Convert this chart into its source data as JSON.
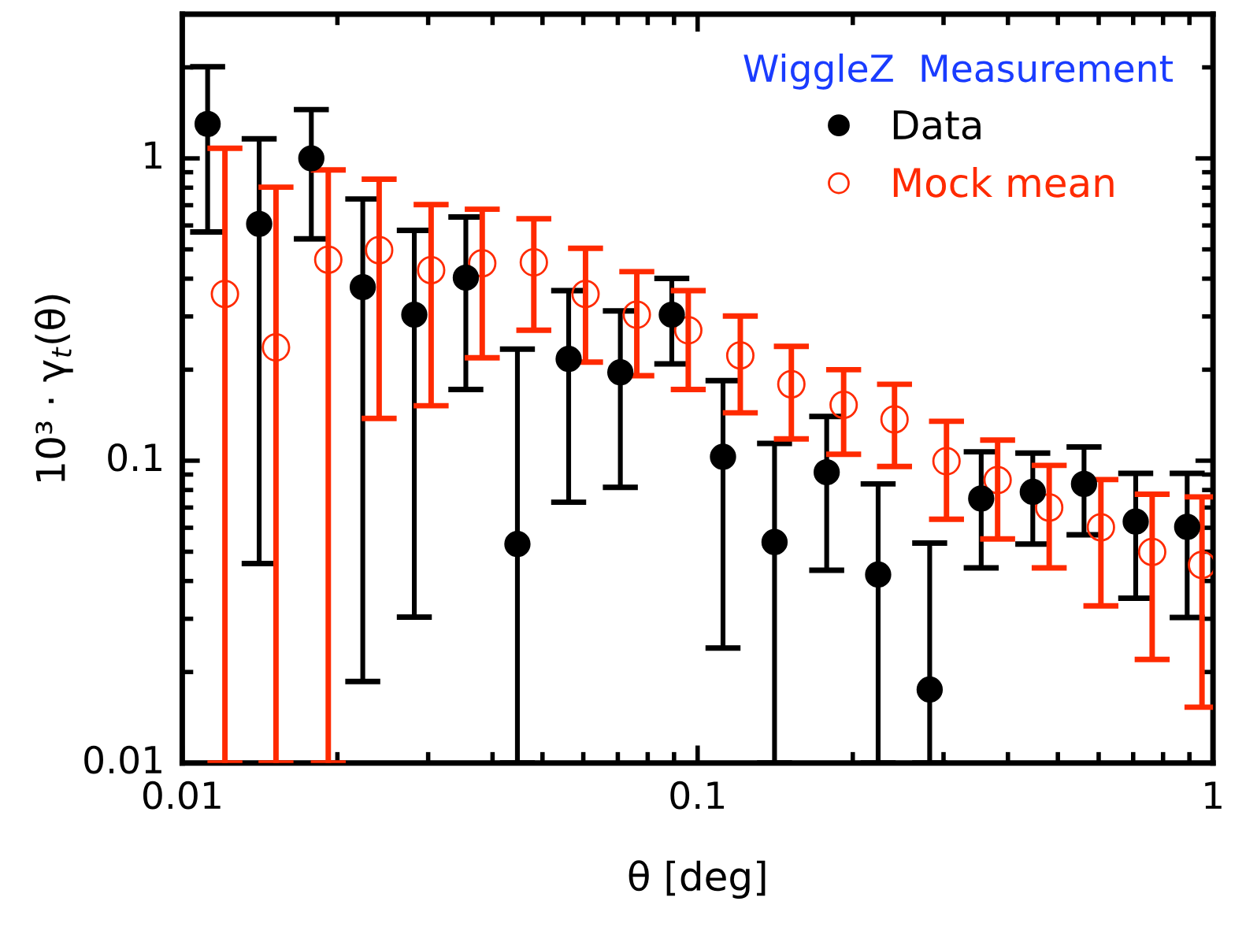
{
  "chart_data": {
    "type": "scatter",
    "xlabel": "θ [deg]",
    "ylabel": "10³ · γ$_{t}$(θ)",
    "legend_title": "WiggleZ  Measurement",
    "legend": "top right",
    "log": "xy",
    "grid": false,
    "marker": "circle",
    "xlim": [
      0.01,
      1
    ],
    "xticks": [
      0.01,
      0.1,
      1
    ],
    "ylim": [
      0.01,
      3
    ],
    "yticks": [
      0.01,
      0.1,
      1
    ],
    "series": [
      {
        "name": "Data",
        "color": "#000000",
        "x": [
          0.0112,
          0.0141,
          0.0178,
          0.0224,
          0.0282,
          0.0355,
          0.0447,
          0.0562,
          0.0708,
          0.0891,
          0.112,
          0.141,
          0.178,
          0.224,
          0.282,
          0.355,
          0.447,
          0.562,
          0.708,
          0.891
        ],
        "values": [
          1.3,
          0.607,
          1.0,
          0.375,
          0.304,
          0.403,
          0.053,
          0.217,
          0.196,
          0.304,
          0.103,
          0.0538,
          0.0916,
          0.042,
          0.0175,
          0.075,
          0.0789,
          0.0838,
          0.0629,
          0.0604
        ],
        "errors": [
          [
            0.571,
            2.01
          ],
          [
            0.0457,
            1.16
          ],
          [
            0.542,
            1.45
          ],
          [
            0.0186,
            0.734
          ],
          [
            0.0304,
            0.578
          ],
          [
            0.172,
            0.64
          ],
          [
            0.01,
            0.234
          ],
          [
            0.0729,
            0.365
          ],
          [
            0.0816,
            0.313
          ],
          [
            0.209,
            0.401
          ],
          [
            0.024,
            0.184
          ],
          [
            0.01,
            0.114
          ],
          [
            0.0434,
            0.14
          ],
          [
            0.01,
            0.0838
          ],
          [
            0.01,
            0.0534
          ],
          [
            0.0442,
            0.107
          ],
          [
            0.053,
            0.106
          ],
          [
            0.0569,
            0.111
          ],
          [
            0.0351,
            0.0908
          ],
          [
            0.0303,
            0.0908
          ]
        ]
      },
      {
        "name": "Mock mean",
        "color": "#ff2a00",
        "x": [
          0.0121,
          0.0152,
          0.0192,
          0.0241,
          0.0304,
          0.0382,
          0.0481,
          0.0606,
          0.0762,
          0.0959,
          0.121,
          0.152,
          0.192,
          0.241,
          0.304,
          0.382,
          0.481,
          0.606,
          0.762,
          0.952
        ],
        "values": [
          0.356,
          0.237,
          0.462,
          0.497,
          0.427,
          0.45,
          0.453,
          0.356,
          0.304,
          0.27,
          0.223,
          0.179,
          0.153,
          0.137,
          0.0996,
          0.0863,
          0.07,
          0.0602,
          0.0499,
          0.0452
        ],
        "errors": [
          [
            0.01,
            1.08
          ],
          [
            0.01,
            0.803
          ],
          [
            0.01,
            0.916
          ],
          [
            0.138,
            0.853
          ],
          [
            0.152,
            0.703
          ],
          [
            0.219,
            0.679
          ],
          [
            0.27,
            0.631
          ],
          [
            0.212,
            0.504
          ],
          [
            0.191,
            0.422
          ],
          [
            0.172,
            0.365
          ],
          [
            0.144,
            0.301
          ],
          [
            0.118,
            0.239
          ],
          [
            0.105,
            0.2
          ],
          [
            0.0957,
            0.179
          ],
          [
            0.064,
            0.135
          ],
          [
            0.0551,
            0.117
          ],
          [
            0.0442,
            0.0965
          ],
          [
            0.0331,
            0.0866
          ],
          [
            0.022,
            0.0775
          ],
          [
            0.0153,
            0.0759
          ]
        ]
      }
    ]
  }
}
